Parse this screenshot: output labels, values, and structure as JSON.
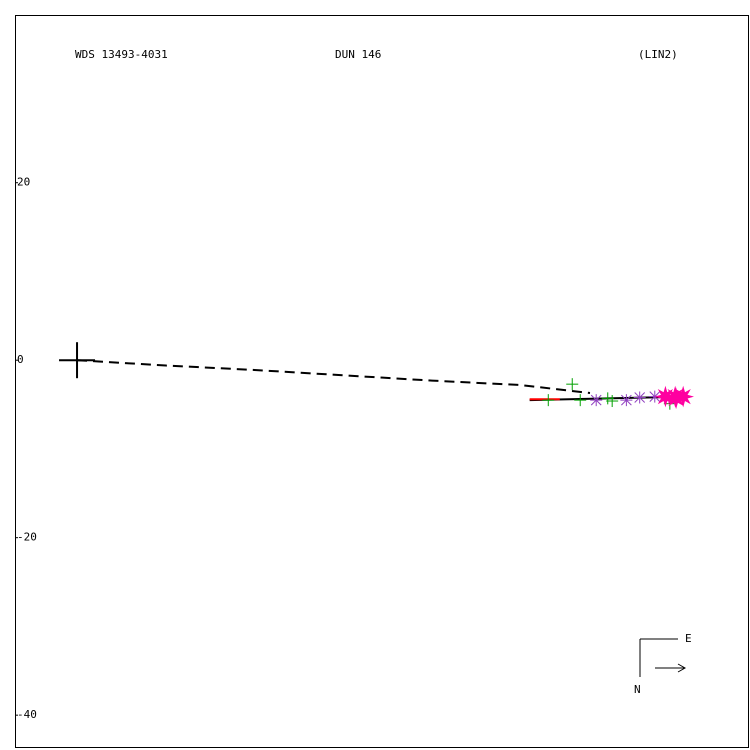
{
  "chart_data": {
    "type": "scatter",
    "title": "WDS 13493-4031",
    "subtitle": "DUN 146",
    "annotation": "(LIN2)",
    "east_label": "E",
    "north_label": "N",
    "xlim": [
      -6.99,
      75.83
    ],
    "ylim": [
      -43.7,
      38.9
    ],
    "yticks": [
      20,
      0,
      -20,
      -40
    ],
    "grid": false,
    "primary": {
      "x": 0,
      "y": 0,
      "color": "#000000"
    },
    "lines": [
      {
        "style": "dashed",
        "color": "#000000",
        "x": [
          0,
          10,
          20,
          30,
          40,
          50,
          57.8
        ],
        "y": [
          0,
          -0.6,
          -1.1,
          -1.7,
          -2.3,
          -2.8,
          -3.7
        ]
      },
      {
        "style": "solid",
        "color": "#000000",
        "x": [
          51,
          69
        ],
        "y": [
          -4.5,
          -4.1
        ]
      },
      {
        "style": "solid",
        "color": "#ff0000",
        "x": [
          51,
          54.4
        ],
        "y": [
          -4.4,
          -4.4
        ]
      }
    ],
    "series": [
      {
        "marker": "plus",
        "color": "#00a000",
        "x": [
          53.1,
          55.8,
          56.7,
          59.8,
          60.3,
          66.8
        ],
        "y": [
          -4.5,
          -2.7,
          -4.5,
          -4.3,
          -4.6,
          -4.9
        ]
      },
      {
        "marker": "asterisk",
        "color": "#9040c0",
        "x": [
          58.5,
          61.9,
          63.4,
          65.1
        ],
        "y": [
          -4.5,
          -4.5,
          -4.2,
          -4.1
        ]
      },
      {
        "marker": "star",
        "color": "#ff00a0",
        "x": [
          66.3,
          67.4,
          68.3,
          67.5
        ],
        "y": [
          -4.1,
          -4.1,
          -4.1,
          -4.3
        ]
      }
    ]
  }
}
